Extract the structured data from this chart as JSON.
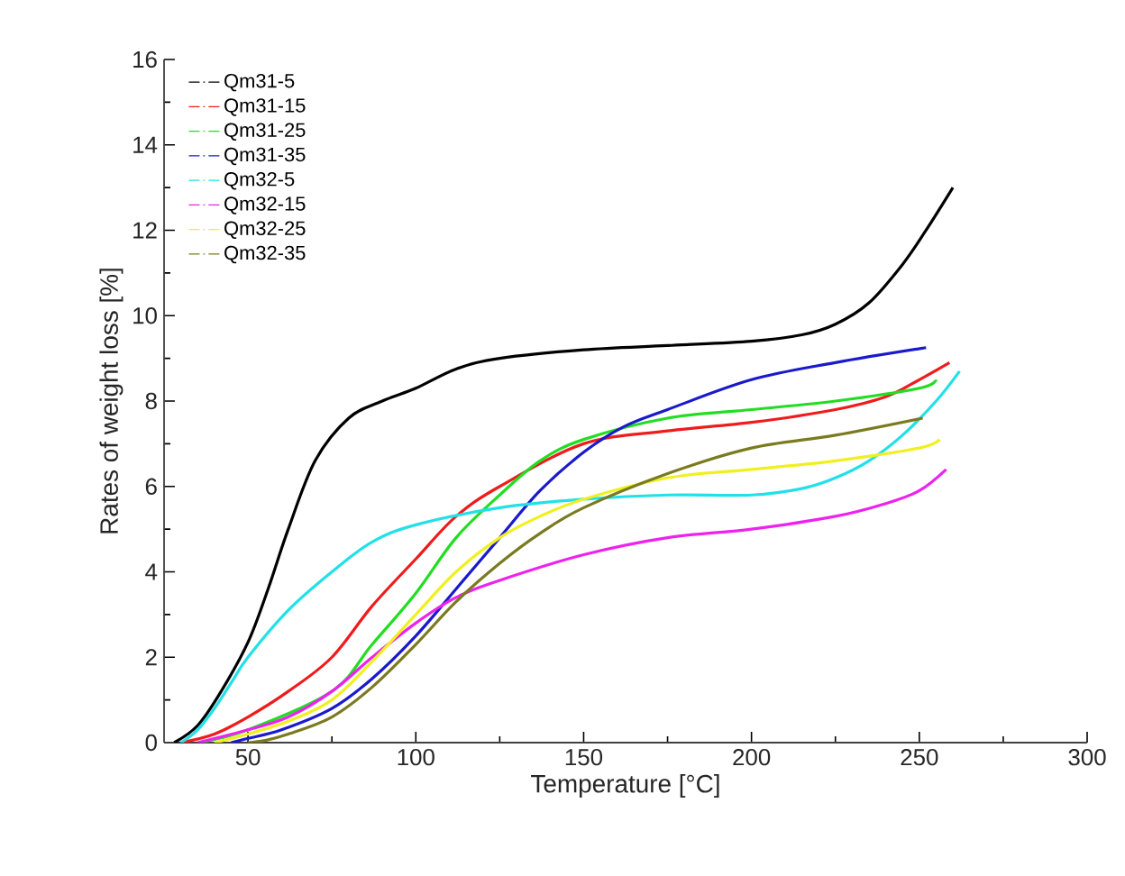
{
  "chart_data": {
    "type": "line",
    "xlabel": "Temperature [°C]",
    "ylabel": "Rates of weight loss [%]",
    "xlim": [
      25,
      300
    ],
    "xticks": [
      50,
      100,
      150,
      200,
      250,
      300
    ],
    "ylim": [
      0,
      16
    ],
    "yticks": [
      0,
      2,
      4,
      6,
      8,
      10,
      12,
      14,
      16
    ],
    "legend": "top left",
    "grid": false,
    "line_style": "solid",
    "marker": "none",
    "series": [
      {
        "name": "Qm31-5",
        "color": "#000000",
        "x": [
          28,
          35,
          42,
          50,
          56,
          62,
          70,
          80,
          90,
          100,
          112,
          125,
          150,
          175,
          200,
          215,
          225,
          235,
          245,
          252,
          260
        ],
        "values": [
          0,
          0.4,
          1.2,
          2.35,
          3.6,
          5.0,
          6.6,
          7.6,
          8.0,
          8.3,
          8.75,
          9.0,
          9.2,
          9.3,
          9.4,
          9.55,
          9.8,
          10.3,
          11.2,
          12.0,
          13.0
        ]
      },
      {
        "name": "Qm31-15",
        "color": "#ee1c1c",
        "x": [
          30,
          40,
          50,
          62,
          75,
          87,
          100,
          112,
          125,
          150,
          175,
          200,
          225,
          240,
          250,
          259
        ],
        "values": [
          0,
          0.2,
          0.6,
          1.2,
          2.0,
          3.2,
          4.3,
          5.3,
          6.0,
          7.0,
          7.3,
          7.5,
          7.8,
          8.1,
          8.5,
          8.9
        ]
      },
      {
        "name": "Qm31-25",
        "color": "#22dd22",
        "x": [
          35,
          50,
          75,
          87,
          100,
          112,
          125,
          137,
          150,
          175,
          200,
          225,
          250,
          255
        ],
        "values": [
          0,
          0.3,
          1.2,
          2.3,
          3.5,
          4.8,
          5.8,
          6.6,
          7.1,
          7.6,
          7.8,
          8.0,
          8.3,
          8.5
        ]
      },
      {
        "name": "Qm31-35",
        "color": "#1a1acc",
        "x": [
          45,
          50,
          60,
          75,
          87,
          100,
          112,
          125,
          137,
          150,
          162,
          175,
          200,
          225,
          252
        ],
        "values": [
          0,
          0.1,
          0.3,
          0.8,
          1.5,
          2.5,
          3.6,
          4.8,
          5.9,
          6.8,
          7.4,
          7.8,
          8.5,
          8.9,
          9.25
        ]
      },
      {
        "name": "Qm32-5",
        "color": "#22e0e8",
        "x": [
          30,
          35,
          40,
          45,
          50,
          62,
          75,
          87,
          100,
          125,
          150,
          175,
          200,
          215,
          225,
          235,
          245,
          255,
          262
        ],
        "values": [
          0,
          0.3,
          0.8,
          1.4,
          2.0,
          3.1,
          4.0,
          4.7,
          5.1,
          5.5,
          5.7,
          5.8,
          5.8,
          5.95,
          6.2,
          6.6,
          7.2,
          8.0,
          8.7
        ]
      },
      {
        "name": "Qm32-15",
        "color": "#ee22ee",
        "x": [
          35,
          50,
          62,
          75,
          87,
          100,
          112,
          125,
          150,
          175,
          200,
          225,
          240,
          250,
          258
        ],
        "values": [
          0,
          0.3,
          0.6,
          1.2,
          2.0,
          2.8,
          3.4,
          3.8,
          4.4,
          4.8,
          5.0,
          5.3,
          5.6,
          5.9,
          6.4
        ]
      },
      {
        "name": "Qm32-25",
        "color": "#f0f020",
        "x": [
          40,
          50,
          62,
          75,
          87,
          100,
          112,
          125,
          137,
          150,
          175,
          200,
          225,
          250,
          256
        ],
        "values": [
          0,
          0.2,
          0.5,
          1.0,
          1.9,
          3.0,
          4.0,
          4.8,
          5.3,
          5.7,
          6.2,
          6.4,
          6.6,
          6.9,
          7.1
        ]
      },
      {
        "name": "Qm32-35",
        "color": "#7a7a20",
        "x": [
          50,
          55,
          62,
          75,
          87,
          100,
          112,
          125,
          137,
          150,
          175,
          200,
          225,
          251
        ],
        "values": [
          0,
          0.05,
          0.2,
          0.6,
          1.3,
          2.3,
          3.3,
          4.2,
          4.9,
          5.5,
          6.3,
          6.9,
          7.2,
          7.6
        ]
      }
    ]
  }
}
